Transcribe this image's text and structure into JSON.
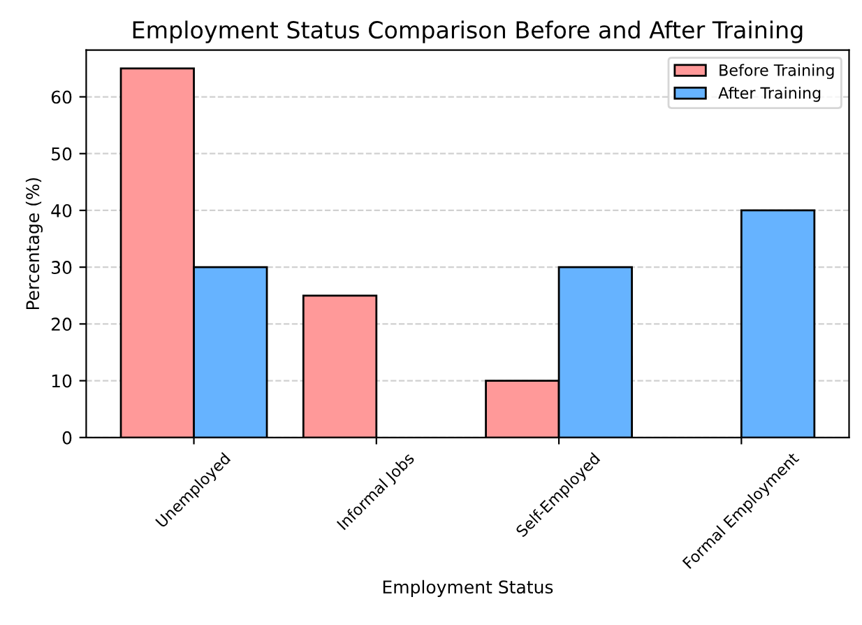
{
  "chart_data": {
    "type": "bar",
    "title": "Employment Status Comparison Before and After Training",
    "xlabel": "Employment Status",
    "ylabel": "Percentage (%)",
    "categories": [
      "Unemployed",
      "Informal Jobs",
      "Self-Employed",
      "Formal Employment"
    ],
    "series": [
      {
        "name": "Before Training",
        "color": "#ff9999",
        "values": [
          65,
          25,
          10,
          0
        ]
      },
      {
        "name": "After Training",
        "color": "#66b3ff",
        "values": [
          30,
          0,
          30,
          40
        ]
      }
    ],
    "ylim": [
      0,
      68.25
    ],
    "yticks": [
      0,
      10,
      20,
      30,
      40,
      50,
      60
    ],
    "grid": "y",
    "legend": "top right"
  }
}
